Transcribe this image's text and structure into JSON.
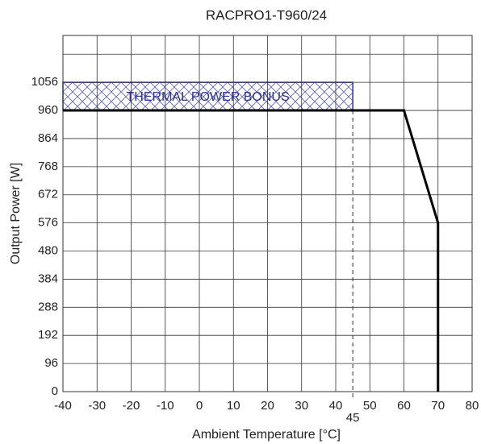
{
  "chart_data": {
    "type": "line",
    "title": "RACPRO1-T960/24",
    "x_label": "Ambient Temperature [°C]",
    "y_label": "Output Power [W]",
    "series": [
      {
        "name": "Output Power",
        "color": "#000000",
        "x": [
          -40,
          60,
          70,
          70
        ],
        "values": [
          960,
          960,
          576,
          0
        ]
      }
    ],
    "xlim": [
      -40,
      80
    ],
    "xticks": [
      -40,
      -30,
      -20,
      -10,
      0,
      10,
      20,
      30,
      40,
      50,
      60,
      70,
      80
    ],
    "ylim": [
      0,
      1216
    ],
    "yticks": [
      0,
      96,
      192,
      288,
      384,
      480,
      576,
      672,
      768,
      864,
      960,
      1056
    ],
    "ygrid": [
      0,
      96,
      192,
      288,
      384,
      480,
      576,
      672,
      768,
      864,
      960,
      1056,
      1152
    ],
    "grid": true,
    "bonus": {
      "label": "THERMAL POWER BONUS",
      "x": [
        -40,
        45
      ],
      "y": [
        960,
        1056
      ],
      "color": "#2e3192"
    },
    "marker": {
      "x": 45,
      "y": 960
    }
  }
}
